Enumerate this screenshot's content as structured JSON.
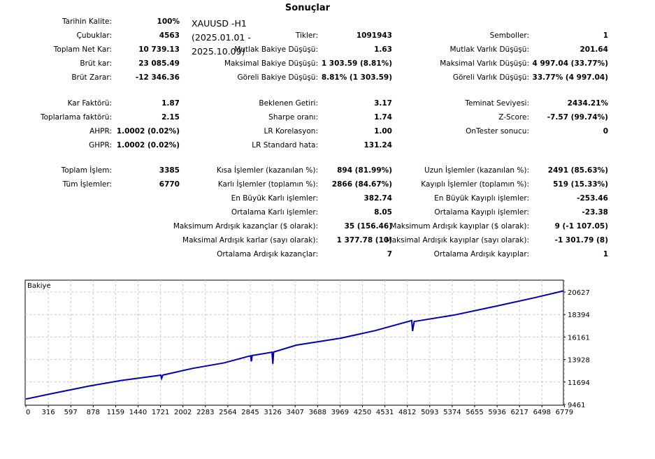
{
  "title": "Sonuçlar",
  "symbol_block": [
    "XAUUSD -H1",
    "(2025.01.01 -",
    "2025.10.09)"
  ],
  "stats": {
    "groups": [
      [
        [
          [
            "Tarihin Kalite:",
            "100%"
          ],
          null,
          null
        ],
        [
          [
            "Çubuklar:",
            "4563"
          ],
          [
            "Tikler:",
            "1091943"
          ],
          [
            "Semboller:",
            "1"
          ]
        ],
        [
          [
            "Toplam Net Kar:",
            "10 739.13"
          ],
          [
            "Mutlak Bakiye Düşüşü:",
            "1.63"
          ],
          [
            "Mutlak Varlık Düşüşü:",
            "201.64"
          ]
        ],
        [
          [
            "Brüt kar:",
            "23 085.49"
          ],
          [
            "Maksimal Bakiye Düşüşü:",
            "1 303.59 (8.81%)"
          ],
          [
            "Maksimal Varlık Düşüşü:",
            "4 997.04 (33.77%)"
          ]
        ],
        [
          [
            "Brüt Zarar:",
            "-12 346.36"
          ],
          [
            "Göreli Bakiye Düşüşü:",
            "8.81% (1 303.59)"
          ],
          [
            "Göreli Varlık Düşüşü:",
            "33.77% (4 997.04)"
          ]
        ]
      ],
      [
        [
          [
            "Kar Faktörü:",
            "1.87"
          ],
          [
            "Beklenen Getiri:",
            "3.17"
          ],
          [
            "Teminat Seviyesi:",
            "2434.21%"
          ]
        ],
        [
          [
            "Toplarlama faktörü:",
            "2.15"
          ],
          [
            "Sharpe oranı:",
            "1.74"
          ],
          [
            "Z-Score:",
            "-7.57 (99.74%)"
          ]
        ],
        [
          [
            "AHPR:",
            "1.0002 (0.02%)"
          ],
          [
            "LR Korelasyon:",
            "1.00"
          ],
          [
            "OnTester sonucu:",
            "0"
          ]
        ],
        [
          [
            "GHPR:",
            "1.0002 (0.02%)"
          ],
          [
            "LR Standard hata:",
            "131.24"
          ],
          null
        ]
      ],
      [
        [
          [
            "Toplam İşlem:",
            "3385"
          ],
          [
            "Kısa İşlemler (kazanılan %):",
            "894 (81.99%)"
          ],
          [
            "Uzun İşlemler (kazanılan %):",
            "2491 (85.63%)"
          ]
        ],
        [
          [
            "Tüm İşlemler:",
            "6770"
          ],
          [
            "Karlı İşlemler (toplamın %):",
            "2866 (84.67%)"
          ],
          [
            "Kayıplı İşlemler (toplamın %):",
            "519 (15.33%)"
          ]
        ],
        [
          null,
          [
            "En Büyük Karlı işlemler:",
            "382.74"
          ],
          [
            "En Büyük Kayıplı işlemler:",
            "-253.46"
          ]
        ],
        [
          null,
          [
            "Ortalama Karlı işlemler:",
            "8.05"
          ],
          [
            "Ortalama Kayıplı işlemler:",
            "-23.38"
          ]
        ],
        [
          null,
          [
            "Maksimum Ardışık kazançlar ($ olarak):",
            "35 (156.46)"
          ],
          [
            "Maksimum Ardışık kayıplar ($ olarak):",
            "9 (-1 107.05)"
          ]
        ],
        [
          null,
          [
            "Maksimal Ardışık karlar (sayı olarak):",
            "1 377.78 (10)"
          ],
          [
            "Maksimal Ardışık kayıplar (sayı olarak):",
            "-1 301.79 (8)"
          ]
        ],
        [
          null,
          [
            "Ortalama Ardışık kazançlar:",
            "7"
          ],
          [
            "Ortalama Ardışık kayıplar:",
            "1"
          ]
        ]
      ]
    ]
  },
  "chart_data": {
    "type": "line",
    "title": "Bakiye",
    "x_ticks": [
      "0",
      "316",
      "597",
      "878",
      "1159",
      "1440",
      "1721",
      "2002",
      "2283",
      "2564",
      "2845",
      "3126",
      "3407",
      "3688",
      "3969",
      "4250",
      "4531",
      "4812",
      "5093",
      "5374",
      "5655",
      "5936",
      "6217",
      "6498",
      "6779"
    ],
    "y_ticks": [
      "9461",
      "11694",
      "13928",
      "16161",
      "18394",
      "20627"
    ],
    "xlim": [
      0,
      6770
    ],
    "ylim": [
      9461,
      20627
    ],
    "color": "#0000b0",
    "series": [
      {
        "name": "Bakiye",
        "points": [
          [
            0,
            10000
          ],
          [
            300,
            10500
          ],
          [
            800,
            11300
          ],
          [
            1200,
            11850
          ],
          [
            1700,
            12374
          ],
          [
            1710,
            12050
          ],
          [
            1725,
            12380
          ],
          [
            2100,
            13050
          ],
          [
            2500,
            13600
          ],
          [
            2830,
            14300
          ],
          [
            2840,
            13750
          ],
          [
            2850,
            14320
          ],
          [
            3100,
            14650
          ],
          [
            3110,
            13500
          ],
          [
            3120,
            14670
          ],
          [
            3407,
            15356
          ],
          [
            3969,
            16050
          ],
          [
            4400,
            16800
          ],
          [
            4860,
            17800
          ],
          [
            4870,
            16750
          ],
          [
            4890,
            17700
          ],
          [
            5400,
            18350
          ],
          [
            5936,
            19250
          ],
          [
            6400,
            20050
          ],
          [
            6770,
            20739
          ]
        ]
      }
    ]
  }
}
